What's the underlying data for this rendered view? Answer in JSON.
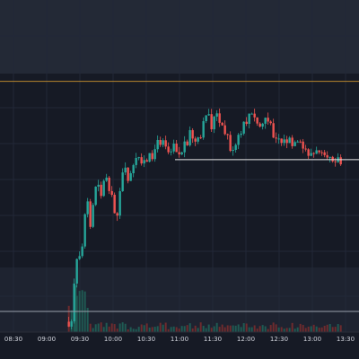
{
  "chart_data": {
    "type": "candlestick",
    "title": "",
    "xlabel": "",
    "ylabel": "",
    "x_tick_labels": [
      "08:30",
      "09:00",
      "09:30",
      "10:00",
      "10:30",
      "11:00",
      "11:30",
      "12:00",
      "12:30",
      "13:00",
      "13:30"
    ],
    "y_axis_labels_visible": false,
    "grid": true,
    "legend": "none",
    "reference_lines": [
      {
        "name": "upper-level-line",
        "level": 0.97,
        "color": "#b8862e"
      },
      {
        "name": "resistance-line",
        "level": 0.667,
        "color": "#e8e8e8"
      },
      {
        "name": "lower-level-line",
        "level": 0.08,
        "color": "#9aa0ab"
      }
    ],
    "price_path": [
      [
        "09:20",
        0.04
      ],
      [
        "09:23",
        0.02
      ],
      [
        "09:25",
        0.18
      ],
      [
        "09:28",
        0.3
      ],
      [
        "09:31",
        0.25
      ],
      [
        "09:34",
        0.42
      ],
      [
        "09:37",
        0.5
      ],
      [
        "09:40",
        0.38
      ],
      [
        "09:43",
        0.55
      ],
      [
        "09:46",
        0.6
      ],
      [
        "09:50",
        0.52
      ],
      [
        "09:53",
        0.62
      ],
      [
        "09:57",
        0.56
      ],
      [
        "10:00",
        0.48
      ],
      [
        "10:03",
        0.44
      ],
      [
        "10:07",
        0.58
      ],
      [
        "10:10",
        0.62
      ],
      [
        "10:15",
        0.59
      ],
      [
        "10:20",
        0.65
      ],
      [
        "10:25",
        0.68
      ],
      [
        "10:30",
        0.64
      ],
      [
        "10:35",
        0.69
      ],
      [
        "10:40",
        0.72
      ],
      [
        "10:45",
        0.76
      ],
      [
        "10:50",
        0.7
      ],
      [
        "10:55",
        0.74
      ],
      [
        "11:00",
        0.68
      ],
      [
        "11:05",
        0.73
      ],
      [
        "11:10",
        0.77
      ],
      [
        "11:15",
        0.72
      ],
      [
        "11:20",
        0.75
      ],
      [
        "11:25",
        0.88
      ],
      [
        "11:28",
        0.79
      ],
      [
        "11:33",
        0.84
      ],
      [
        "11:38",
        0.78
      ],
      [
        "11:43",
        0.76
      ],
      [
        "11:48",
        0.68
      ],
      [
        "11:53",
        0.74
      ],
      [
        "11:58",
        0.79
      ],
      [
        "12:03",
        0.84
      ],
      [
        "12:08",
        0.82
      ],
      [
        "12:13",
        0.79
      ],
      [
        "12:18",
        0.83
      ],
      [
        "12:23",
        0.78
      ],
      [
        "12:28",
        0.76
      ],
      [
        "12:33",
        0.73
      ],
      [
        "12:38",
        0.74
      ],
      [
        "12:43",
        0.71
      ],
      [
        "12:48",
        0.72
      ],
      [
        "12:53",
        0.7
      ],
      [
        "12:58",
        0.69
      ],
      [
        "13:03",
        0.68
      ],
      [
        "13:08",
        0.72
      ],
      [
        "13:13",
        0.7
      ],
      [
        "13:18",
        0.68
      ],
      [
        "13:23",
        0.67
      ],
      [
        "13:27",
        0.64
      ]
    ],
    "colors": {
      "up": "#26a69a",
      "down": "#ef5350",
      "background": "#161a25",
      "band": "#232936",
      "grid": "#222838",
      "axis_text": "#d1d4dc"
    }
  }
}
